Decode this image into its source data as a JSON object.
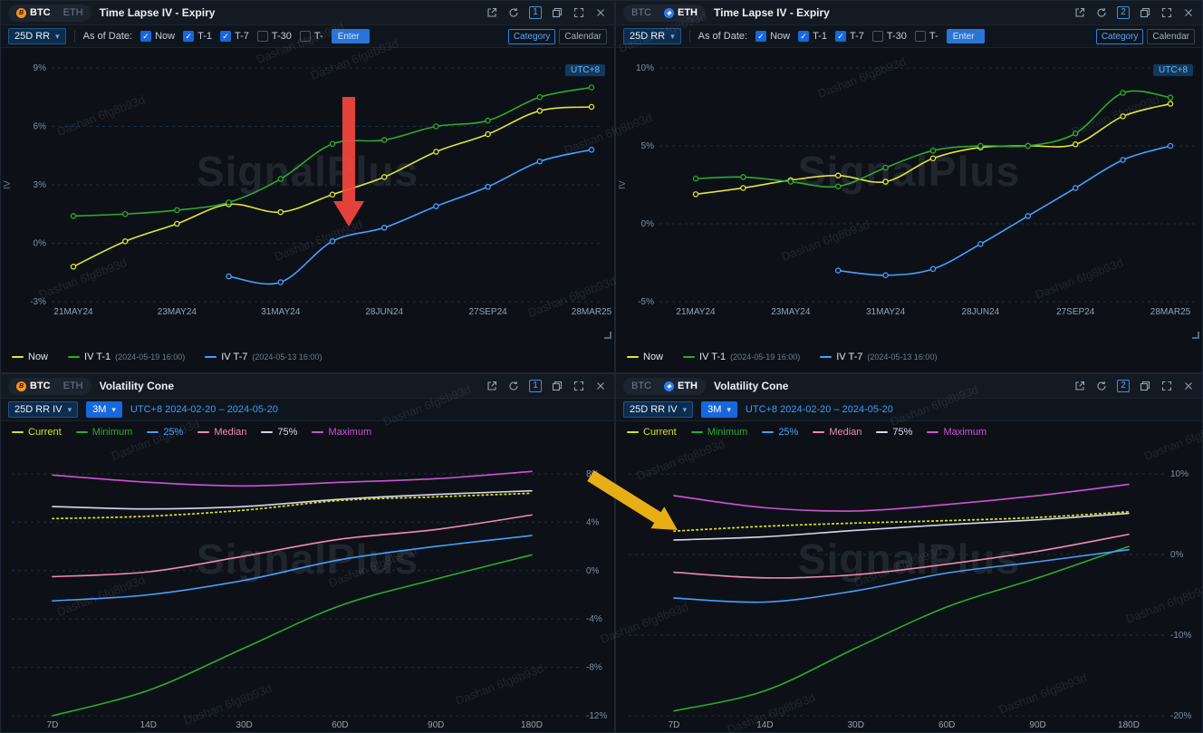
{
  "watermark": {
    "brand": "SignalPlus",
    "user": "Dashan 6fg8b93d"
  },
  "annotations": {
    "red_arrow_color": "#f5473f",
    "yellow_arrow_color": "#f3b716"
  },
  "panels": [
    {
      "header": {
        "btc": "BTC",
        "eth": "ETH",
        "active_asset": "BTC",
        "title": "Time Lapse IV - Expiry",
        "badge": "1"
      },
      "toolbar": {
        "metric": "25D RR",
        "as_of_label": "As of Date:",
        "checkboxes": [
          {
            "label": "Now",
            "checked": true
          },
          {
            "label": "T-1",
            "checked": true
          },
          {
            "label": "T-7",
            "checked": true
          },
          {
            "label": "T-30",
            "checked": false
          },
          {
            "label": "T-",
            "checked": false
          }
        ],
        "enter_input": "Enter",
        "category": "Category",
        "calendar": "Calendar"
      },
      "utc_badge": "UTC+8",
      "legend": [
        {
          "label": "Now",
          "time": "",
          "color": "#e3e338"
        },
        {
          "label": "IV T-1",
          "time": "(2024-05-19 16:00)",
          "color": "#2faa2f"
        },
        {
          "label": "IV T-7",
          "time": "(2024-05-13 16:00)",
          "color": "#4a9eff"
        }
      ],
      "chart_data": {
        "type": "line",
        "title": "Time Lapse IV - Expiry (BTC 25D RR)",
        "ylabel": "IV",
        "ylim": [
          -3,
          9
        ],
        "yticks": [
          9,
          6,
          3,
          0,
          -3
        ],
        "yaxis_side": "left",
        "n_points": 11,
        "xlabels": [
          "21MAY24",
          "23MAY24",
          "31MAY24",
          "28JUN24",
          "27SEP24",
          "28MAR25"
        ],
        "xlabel_positions": [
          0,
          2,
          4,
          6,
          8,
          10
        ],
        "series": [
          {
            "name": "Now",
            "color": "#e3e338",
            "style": "solid",
            "markers": true,
            "values": [
              -1.2,
              0.1,
              1.0,
              2.0,
              1.6,
              2.5,
              3.4,
              4.7,
              5.6,
              6.8,
              7.0
            ]
          },
          {
            "name": "IV T-1 (2024-05-19 16:00)",
            "color": "#2faa2f",
            "style": "solid",
            "markers": true,
            "values": [
              1.4,
              1.5,
              1.7,
              2.1,
              3.3,
              5.1,
              5.3,
              6.0,
              6.3,
              7.5,
              8.0
            ]
          },
          {
            "name": "IV T-7 (2024-05-13 16:00)",
            "color": "#4a9eff",
            "style": "solid",
            "markers": true,
            "values": [
              null,
              null,
              null,
              -1.7,
              -2.0,
              0.1,
              0.8,
              1.9,
              2.9,
              4.2,
              4.8
            ]
          }
        ]
      }
    },
    {
      "header": {
        "btc": "BTC",
        "eth": "ETH",
        "active_asset": "ETH",
        "title": "Time Lapse IV - Expiry",
        "badge": "2"
      },
      "toolbar": {
        "metric": "25D RR",
        "as_of_label": "As of Date:",
        "checkboxes": [
          {
            "label": "Now",
            "checked": true
          },
          {
            "label": "T-1",
            "checked": true
          },
          {
            "label": "T-7",
            "checked": true
          },
          {
            "label": "T-30",
            "checked": false
          },
          {
            "label": "T-",
            "checked": false
          }
        ],
        "enter_input": "Enter",
        "category": "Category",
        "calendar": "Calendar"
      },
      "utc_badge": "UTC+8",
      "legend": [
        {
          "label": "Now",
          "time": "",
          "color": "#e3e338"
        },
        {
          "label": "IV T-1",
          "time": "(2024-05-19 16:00)",
          "color": "#2faa2f"
        },
        {
          "label": "IV T-7",
          "time": "(2024-05-13 16:00)",
          "color": "#4a9eff"
        }
      ],
      "chart_data": {
        "type": "line",
        "title": "Time Lapse IV - Expiry (ETH 25D RR)",
        "ylabel": "IV",
        "ylim": [
          -5,
          10
        ],
        "yticks": [
          10,
          5,
          0,
          -5
        ],
        "yaxis_side": "left",
        "n_points": 11,
        "xlabels": [
          "21MAY24",
          "23MAY24",
          "31MAY24",
          "28JUN24",
          "27SEP24",
          "28MAR25"
        ],
        "xlabel_positions": [
          0,
          2,
          4,
          6,
          8,
          10
        ],
        "series": [
          {
            "name": "Now",
            "color": "#e3e338",
            "style": "solid",
            "markers": true,
            "values": [
              1.9,
              2.3,
              2.8,
              3.1,
              2.7,
              4.2,
              4.9,
              5.0,
              5.1,
              6.9,
              7.7
            ]
          },
          {
            "name": "IV T-1 (2024-05-19 16:00)",
            "color": "#2faa2f",
            "style": "solid",
            "markers": true,
            "values": [
              2.9,
              3.0,
              2.7,
              2.4,
              3.6,
              4.7,
              5.0,
              5.0,
              5.8,
              8.4,
              8.1
            ]
          },
          {
            "name": "IV T-7 (2024-05-13 16:00)",
            "color": "#4a9eff",
            "style": "solid",
            "markers": true,
            "values": [
              null,
              null,
              null,
              -3.0,
              -3.3,
              -2.9,
              -1.3,
              0.5,
              2.3,
              4.1,
              5.0
            ]
          }
        ]
      }
    },
    {
      "header": {
        "btc": "BTC",
        "eth": "ETH",
        "active_asset": "BTC",
        "title": "Volatility Cone",
        "badge": "1"
      },
      "toolbar": {
        "metric": "25D RR IV",
        "period": "3M",
        "range": "UTC+8 2024-02-20 – 2024-05-20"
      },
      "legend": [
        {
          "label": "Current",
          "color": "#d7df23"
        },
        {
          "label": "Minimum",
          "color": "#2faa2f"
        },
        {
          "label": "25%",
          "color": "#4a9eff"
        },
        {
          "label": "Median",
          "color": "#f08bb4"
        },
        {
          "label": "75%",
          "color": "#d8d7ec"
        },
        {
          "label": "Maximum",
          "color": "#cf53d4"
        }
      ],
      "chart_data": {
        "type": "line",
        "title": "Volatility Cone (BTC 25D RR IV, 3M)",
        "ylim": [
          -12,
          8
        ],
        "yticks": [
          8,
          4,
          0,
          -4,
          -8,
          -12
        ],
        "yaxis_side": "right",
        "n_points": 6,
        "xlabels": [
          "7D",
          "14D",
          "30D",
          "60D",
          "90D",
          "180D"
        ],
        "xlabel_positions": [
          0,
          1,
          2,
          3,
          4,
          5
        ],
        "series": [
          {
            "name": "Minimum",
            "color": "#2faa2f",
            "style": "solid",
            "markers": false,
            "values": [
              -12.0,
              -9.9,
              -6.4,
              -2.9,
              -0.7,
              1.3
            ]
          },
          {
            "name": "25%",
            "color": "#4a9eff",
            "style": "solid",
            "markers": false,
            "values": [
              -2.5,
              -2.0,
              -0.8,
              0.9,
              2.0,
              2.9
            ]
          },
          {
            "name": "Median",
            "color": "#f08bb4",
            "style": "solid",
            "markers": false,
            "values": [
              -0.5,
              -0.1,
              1.2,
              2.6,
              3.4,
              4.6
            ]
          },
          {
            "name": "75%",
            "color": "#d8d7ec",
            "style": "solid",
            "markers": false,
            "values": [
              5.3,
              5.1,
              5.3,
              5.9,
              6.3,
              6.6
            ]
          },
          {
            "name": "Maximum",
            "color": "#cf53d4",
            "style": "solid",
            "markers": false,
            "values": [
              7.9,
              7.3,
              7.0,
              7.3,
              7.6,
              8.2
            ]
          },
          {
            "name": "Current",
            "color": "#d7df23",
            "style": "dotted",
            "markers": false,
            "values": [
              4.3,
              4.5,
              5.0,
              5.8,
              6.1,
              6.4
            ]
          }
        ]
      }
    },
    {
      "header": {
        "btc": "BTC",
        "eth": "ETH",
        "active_asset": "ETH",
        "title": "Volatility Cone",
        "badge": "2"
      },
      "toolbar": {
        "metric": "25D RR IV",
        "period": "3M",
        "range": "UTC+8 2024-02-20 – 2024-05-20"
      },
      "legend": [
        {
          "label": "Current",
          "color": "#d7df23"
        },
        {
          "label": "Minimum",
          "color": "#2faa2f"
        },
        {
          "label": "25%",
          "color": "#4a9eff"
        },
        {
          "label": "Median",
          "color": "#f08bb4"
        },
        {
          "label": "75%",
          "color": "#d8d7ec"
        },
        {
          "label": "Maximum",
          "color": "#cf53d4"
        }
      ],
      "chart_data": {
        "type": "line",
        "title": "Volatility Cone (ETH 25D RR IV, 3M)",
        "ylim": [
          -20,
          10
        ],
        "yticks": [
          10,
          0,
          -10,
          -20
        ],
        "yaxis_side": "right",
        "n_points": 6,
        "xlabels": [
          "7D",
          "14D",
          "30D",
          "60D",
          "90D",
          "180D"
        ],
        "xlabel_positions": [
          0,
          1,
          2,
          3,
          4,
          5
        ],
        "series": [
          {
            "name": "Minimum",
            "color": "#2faa2f",
            "style": "solid",
            "markers": false,
            "values": [
              -19.4,
              -16.9,
              -11.6,
              -6.5,
              -2.9,
              1.0
            ]
          },
          {
            "name": "25%",
            "color": "#4a9eff",
            "style": "solid",
            "markers": false,
            "values": [
              -5.4,
              -5.9,
              -4.5,
              -2.3,
              -0.9,
              0.6
            ]
          },
          {
            "name": "Median",
            "color": "#f08bb4",
            "style": "solid",
            "markers": false,
            "values": [
              -2.2,
              -2.9,
              -2.5,
              -1.2,
              0.4,
              2.5
            ]
          },
          {
            "name": "75%",
            "color": "#d8d7ec",
            "style": "solid",
            "markers": false,
            "values": [
              1.8,
              2.2,
              3.0,
              3.7,
              4.3,
              5.1
            ]
          },
          {
            "name": "Maximum",
            "color": "#cf53d4",
            "style": "solid",
            "markers": false,
            "values": [
              7.3,
              5.8,
              5.4,
              6.2,
              7.3,
              8.7
            ]
          },
          {
            "name": "Current",
            "color": "#d7df23",
            "style": "dotted",
            "markers": false,
            "values": [
              2.9,
              3.5,
              3.9,
              4.2,
              4.6,
              5.3
            ]
          }
        ]
      }
    }
  ]
}
